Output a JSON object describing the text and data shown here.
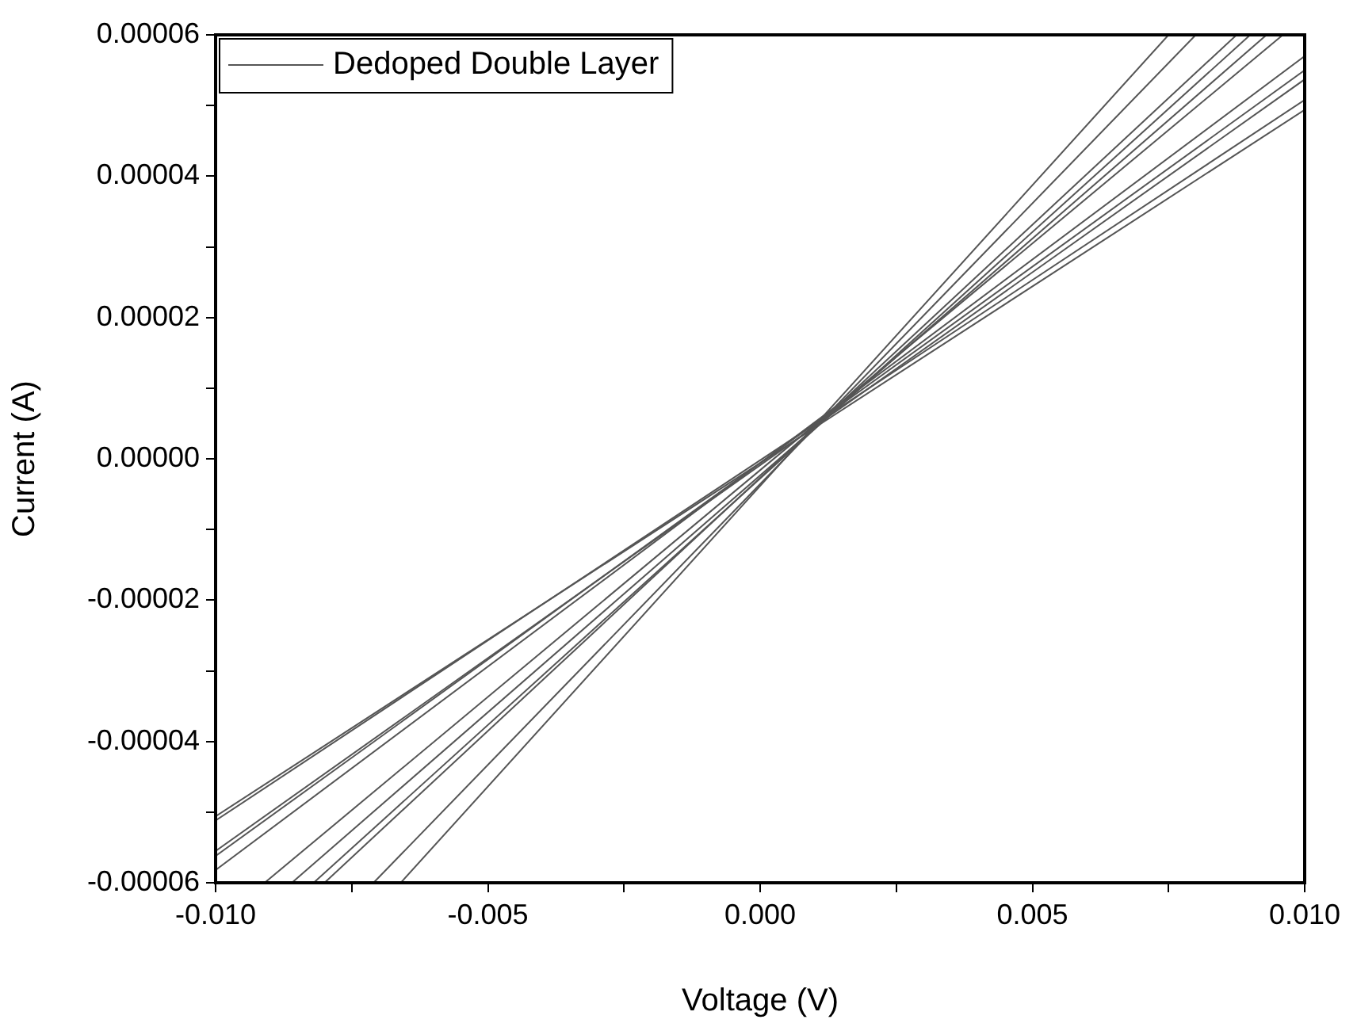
{
  "chart_data": {
    "type": "line",
    "xlabel": "Voltage (V)",
    "ylabel": "Current (A)",
    "legend": "top left",
    "grid": false,
    "marker": "none",
    "line_style": "solid",
    "xlim": [
      -0.01,
      0.01
    ],
    "xticks": [
      {
        "value": -0.01,
        "label": "-0.010"
      },
      {
        "value": -0.0075,
        "label": null
      },
      {
        "value": -0.005,
        "label": "-0.005"
      },
      {
        "value": -0.0025,
        "label": null
      },
      {
        "value": 0,
        "label": "0.000"
      },
      {
        "value": 0.0025,
        "label": null
      },
      {
        "value": 0.005,
        "label": "0.005"
      },
      {
        "value": 0.0075,
        "label": null
      },
      {
        "value": 0.01,
        "label": "0.010"
      }
    ],
    "ylim": [
      -6e-05,
      6e-05
    ],
    "yticks": [
      {
        "value": -6e-05,
        "label": "-0.00006"
      },
      {
        "value": -5e-05,
        "label": null
      },
      {
        "value": -4e-05,
        "label": "-0.00004"
      },
      {
        "value": -3e-05,
        "label": null
      },
      {
        "value": -2e-05,
        "label": "-0.00002"
      },
      {
        "value": -1e-05,
        "label": null
      },
      {
        "value": 0,
        "label": "0.00000"
      },
      {
        "value": 1e-05,
        "label": null
      },
      {
        "value": 2e-05,
        "label": "0.00002"
      },
      {
        "value": 3e-05,
        "label": null
      },
      {
        "value": 4e-05,
        "label": "0.00004"
      },
      {
        "value": 5e-05,
        "label": null
      },
      {
        "value": 6e-05,
        "label": "0.00006"
      }
    ],
    "series": [
      {
        "name": "Dedoped Double Layer",
        "color": "#555555",
        "x": [
          -0.01,
          0.01
        ],
        "values": [
          -5.06e-05,
          4.94e-05
        ]
      },
      {
        "color": "#555555",
        "x": [
          -0.01,
          0.01
        ],
        "values": [
          -5.12e-05,
          5.08e-05
        ]
      },
      {
        "color": "#555555",
        "x": [
          -0.01,
          0.01
        ],
        "values": [
          -5.55e-05,
          5.37e-05
        ]
      },
      {
        "color": "#555555",
        "x": [
          -0.01,
          0.01
        ],
        "values": [
          -5.62e-05,
          5.5e-05
        ]
      },
      {
        "color": "#555555",
        "x": [
          -0.01,
          0.01
        ],
        "values": [
          -5.82e-05,
          5.7e-05
        ]
      },
      {
        "color": "#555555",
        "x": [
          -0.0091,
          0.0096
        ],
        "values": [
          -6e-05,
          6e-05
        ]
      },
      {
        "color": "#555555",
        "x": [
          -0.0086,
          0.0093
        ],
        "values": [
          -6e-05,
          6e-05
        ]
      },
      {
        "color": "#555555",
        "x": [
          -0.0082,
          0.009
        ],
        "values": [
          -6e-05,
          6e-05
        ]
      },
      {
        "color": "#555555",
        "x": [
          -0.008,
          0.00875
        ],
        "values": [
          -6e-05,
          6e-05
        ]
      },
      {
        "color": "#555555",
        "x": [
          -0.0071,
          0.008
        ],
        "values": [
          -6e-05,
          6e-05
        ]
      },
      {
        "color": "#555555",
        "x": [
          -0.0066,
          0.0075
        ],
        "values": [
          -6e-05,
          6e-05
        ]
      }
    ]
  }
}
